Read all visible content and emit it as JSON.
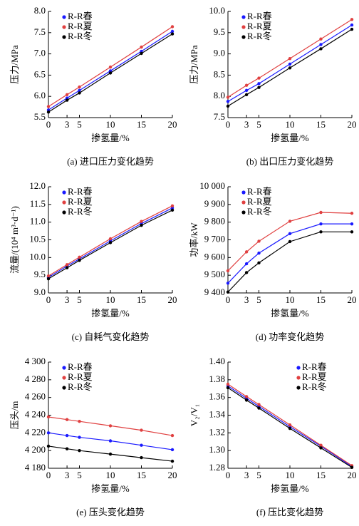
{
  "chart_data": [
    {
      "type": "line",
      "title": "(a) 进口压力变化趋势",
      "xlabel": "掺氢量/%",
      "ylabel": "压力/MPa",
      "x": [
        0,
        3,
        5,
        10,
        15,
        20
      ],
      "xlim": [
        0,
        20
      ],
      "xticks": [
        0,
        3,
        5,
        10,
        15,
        20
      ],
      "ylim": [
        5.5,
        8.0
      ],
      "yticks": [
        5.5,
        {
          "value": 6,
          "label": "6.0"
        },
        6.5,
        {
          "value": 7,
          "label": "7.0"
        },
        7.5,
        {
          "value": 8,
          "label": "8.0"
        }
      ],
      "legend": "upper left",
      "series": [
        {
          "name": "R-R春",
          "color": "#1a1aff",
          "values": [
            5.68,
            5.96,
            6.14,
            6.6,
            7.06,
            7.53
          ]
        },
        {
          "name": "R-R夏",
          "color": "#e04040",
          "values": [
            5.76,
            6.04,
            6.22,
            6.69,
            7.16,
            7.64
          ]
        },
        {
          "name": "R-R冬",
          "color": "#000000",
          "values": [
            5.63,
            5.91,
            6.08,
            6.55,
            7.01,
            7.47
          ]
        }
      ]
    },
    {
      "type": "line",
      "title": "(b) 出口压力变化趋势",
      "xlabel": "掺氢量/%",
      "ylabel": "压力/MPa",
      "x": [
        0,
        3,
        5,
        10,
        15,
        20
      ],
      "xlim": [
        0,
        20
      ],
      "xticks": [
        0,
        3,
        5,
        10,
        15,
        20
      ],
      "ylim": [
        7.5,
        10.0
      ],
      "yticks": [
        7.5,
        {
          "value": 8,
          "label": "8.0"
        },
        8.5,
        {
          "value": 9,
          "label": "9.0"
        },
        9.5,
        {
          "value": 10,
          "label": "10.0"
        }
      ],
      "legend": "upper left",
      "series": [
        {
          "name": "R-R春",
          "color": "#1a1aff",
          "values": [
            7.88,
            8.14,
            8.3,
            8.76,
            9.22,
            9.68
          ]
        },
        {
          "name": "R-R夏",
          "color": "#e04040",
          "values": [
            7.98,
            8.26,
            8.43,
            8.89,
            9.35,
            9.81
          ]
        },
        {
          "name": "R-R冬",
          "color": "#000000",
          "values": [
            7.77,
            8.04,
            8.21,
            8.67,
            9.12,
            9.58
          ]
        }
      ]
    },
    {
      "type": "line",
      "title": "(c) 自耗气变化趋势",
      "xlabel": "掺氢量/%",
      "ylabel": "流量/(10⁴ m³·d⁻¹)",
      "x": [
        0,
        3,
        5,
        10,
        15,
        20
      ],
      "xlim": [
        0,
        20
      ],
      "xticks": [
        0,
        3,
        5,
        10,
        15,
        20
      ],
      "ylim": [
        9.0,
        12.0
      ],
      "yticks": [
        {
          "value": 9,
          "label": "9.0"
        },
        9.5,
        {
          "value": 10,
          "label": "10.0"
        },
        10.5,
        {
          "value": 11,
          "label": "11.0"
        },
        11.5,
        {
          "value": 12,
          "label": "12.0"
        }
      ],
      "legend": "upper left",
      "series": [
        {
          "name": "R-R春",
          "color": "#1a1aff",
          "values": [
            9.44,
            9.76,
            9.96,
            10.47,
            10.96,
            11.4
          ]
        },
        {
          "name": "R-R夏",
          "color": "#e04040",
          "values": [
            9.48,
            9.8,
            10.01,
            10.53,
            11.02,
            11.46
          ]
        },
        {
          "name": "R-R冬",
          "color": "#000000",
          "values": [
            9.4,
            9.71,
            9.92,
            10.42,
            10.91,
            11.34
          ]
        }
      ]
    },
    {
      "type": "line",
      "title": "(d) 功率变化趋势",
      "xlabel": "掺氢量/%",
      "ylabel": "功率/kW",
      "x": [
        0,
        3,
        5,
        10,
        15,
        20
      ],
      "xlim": [
        0,
        20
      ],
      "xticks": [
        0,
        3,
        5,
        10,
        15,
        20
      ],
      "ylim": [
        9400,
        10000
      ],
      "yticks": [
        {
          "value": 9400,
          "label": "9 400"
        },
        {
          "value": 9500,
          "label": "9 500"
        },
        {
          "value": 9600,
          "label": "9 600"
        },
        {
          "value": 9700,
          "label": "9 700"
        },
        {
          "value": 9800,
          "label": "9 800"
        },
        {
          "value": 9900,
          "label": "9 900"
        },
        {
          "value": 10000,
          "label": "10 000"
        }
      ],
      "legend": "upper left",
      "series": [
        {
          "name": "R-R春",
          "color": "#1a1aff",
          "values": [
            9455,
            9565,
            9625,
            9735,
            9790,
            9790
          ]
        },
        {
          "name": "R-R夏",
          "color": "#e04040",
          "values": [
            9525,
            9632,
            9692,
            9805,
            9855,
            9850
          ]
        },
        {
          "name": "R-R冬",
          "color": "#000000",
          "values": [
            9405,
            9515,
            9570,
            9690,
            9745,
            9745
          ]
        }
      ]
    },
    {
      "type": "line",
      "title": "(e) 压头变化趋势",
      "xlabel": "掺氢量/%",
      "ylabel": "压头/m",
      "x": [
        0,
        3,
        5,
        10,
        15,
        20
      ],
      "xlim": [
        0,
        20
      ],
      "xticks": [
        0,
        3,
        5,
        10,
        15,
        20
      ],
      "ylim": [
        4180,
        4300
      ],
      "yticks": [
        {
          "value": 4180,
          "label": "4 180"
        },
        {
          "value": 4200,
          "label": "4 200"
        },
        {
          "value": 4220,
          "label": "4 220"
        },
        {
          "value": 4240,
          "label": "4 240"
        },
        {
          "value": 4260,
          "label": "4 260"
        },
        {
          "value": 4280,
          "label": "4 280"
        },
        {
          "value": 4300,
          "label": "4 300"
        }
      ],
      "legend": "upper left",
      "series": [
        {
          "name": "R-R春",
          "color": "#1a1aff",
          "values": [
            4220,
            4217,
            4215,
            4211,
            4206,
            4201
          ]
        },
        {
          "name": "R-R夏",
          "color": "#e04040",
          "values": [
            4238,
            4235,
            4233,
            4228,
            4223,
            4217
          ]
        },
        {
          "name": "R-R冬",
          "color": "#000000",
          "values": [
            4205,
            4202,
            4200,
            4196,
            4192,
            4188
          ]
        }
      ]
    },
    {
      "type": "line",
      "title": "(f) 压比变化趋势",
      "xlabel": "掺氢量/%",
      "ylabel": "V₂/V₁",
      "x": [
        0,
        3,
        5,
        10,
        15,
        20
      ],
      "xlim": [
        0,
        20
      ],
      "xticks": [
        0,
        3,
        5,
        10,
        15,
        20
      ],
      "ylim": [
        1.28,
        1.4
      ],
      "yticks": [
        1.28,
        {
          "value": 1.3,
          "label": "1.30"
        },
        1.32,
        1.34,
        1.36,
        1.38,
        {
          "value": 1.4,
          "label": "1.40"
        }
      ],
      "legend": "upper right",
      "series": [
        {
          "name": "R-R春",
          "color": "#1a1aff",
          "values": [
            1.373,
            1.359,
            1.35,
            1.327,
            1.305,
            1.282
          ]
        },
        {
          "name": "R-R夏",
          "color": "#e04040",
          "values": [
            1.375,
            1.361,
            1.352,
            1.329,
            1.306,
            1.283
          ]
        },
        {
          "name": "R-R冬",
          "color": "#000000",
          "values": [
            1.371,
            1.357,
            1.348,
            1.325,
            1.303,
            1.281
          ]
        }
      ]
    }
  ]
}
